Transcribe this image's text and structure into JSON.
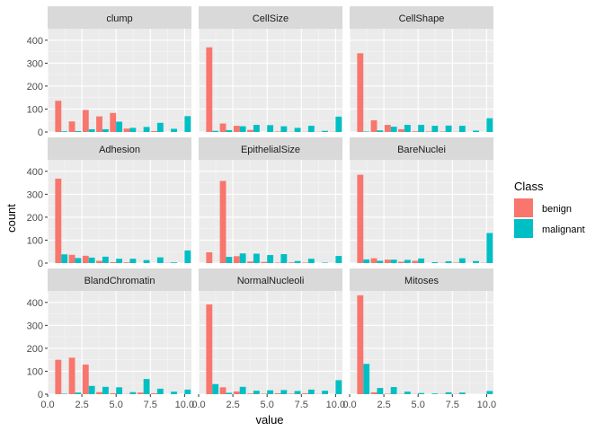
{
  "chart_data": {
    "type": "bar",
    "facet_layout": "3x3",
    "xlabel": "value",
    "ylabel": "count",
    "x_ticks": [
      0.0,
      2.5,
      5.0,
      7.5,
      10.0
    ],
    "x_tick_labels": [
      "0.0",
      "2.5",
      "5.0",
      "7.5",
      "10.0"
    ],
    "y_ticks": [
      0,
      100,
      200,
      300,
      400
    ],
    "ylim": [
      0,
      450
    ],
    "xlim": [
      0,
      10.5
    ],
    "x": [
      1,
      2,
      3,
      4,
      5,
      6,
      7,
      8,
      9,
      10
    ],
    "grid": true,
    "legend": {
      "title": "Class",
      "placement": "right",
      "entries": [
        {
          "name": "benign",
          "color": "#F8766D"
        },
        {
          "name": "malignant",
          "color": "#00BFC4"
        }
      ]
    },
    "panels": [
      {
        "title": "clump",
        "benign": [
          136,
          46,
          96,
          68,
          83,
          15,
          1,
          4,
          0,
          0
        ],
        "malignant": [
          3,
          4,
          12,
          12,
          45,
          18,
          22,
          40,
          14,
          69
        ]
      },
      {
        "title": "CellSize",
        "benign": [
          369,
          37,
          27,
          9,
          0,
          2,
          1,
          1,
          1,
          1
        ],
        "malignant": [
          5,
          8,
          25,
          31,
          30,
          25,
          18,
          27,
          5,
          67
        ]
      },
      {
        "title": "CellShape",
        "benign": [
          343,
          51,
          31,
          12,
          3,
          2,
          2,
          1,
          0,
          0
        ],
        "malignant": [
          2,
          7,
          23,
          31,
          31,
          27,
          28,
          27,
          6,
          60
        ]
      },
      {
        "title": "Adhesion",
        "benign": [
          368,
          36,
          32,
          10,
          4,
          3,
          0,
          0,
          1,
          0
        ],
        "malignant": [
          38,
          22,
          24,
          28,
          19,
          19,
          13,
          25,
          3,
          55
        ]
      },
      {
        "title": "EpithelialSize",
        "benign": [
          47,
          358,
          30,
          7,
          5,
          2,
          3,
          2,
          0,
          0
        ],
        "malignant": [
          0,
          27,
          42,
          41,
          35,
          39,
          9,
          19,
          2,
          31
        ]
      },
      {
        "title": "BareNuclei",
        "benign": [
          385,
          21,
          15,
          6,
          10,
          0,
          1,
          2,
          0,
          1
        ],
        "malignant": [
          16,
          10,
          15,
          14,
          20,
          4,
          8,
          21,
          9,
          131
        ]
      },
      {
        "title": "BlandChromatin",
        "benign": [
          150,
          159,
          129,
          9,
          4,
          1,
          7,
          4,
          0,
          0
        ],
        "malignant": [
          2,
          7,
          36,
          32,
          30,
          9,
          66,
          24,
          11,
          20
        ]
      },
      {
        "title": "NormalNucleoli",
        "benign": [
          391,
          30,
          12,
          3,
          2,
          4,
          2,
          4,
          1,
          0
        ],
        "malignant": [
          44,
          6,
          32,
          15,
          17,
          18,
          14,
          20,
          15,
          61
        ]
      },
      {
        "title": "Mitoses",
        "benign": [
          431,
          8,
          2,
          1,
          1,
          0,
          1,
          1,
          0,
          0
        ],
        "malignant": [
          132,
          27,
          31,
          11,
          5,
          3,
          8,
          7,
          0,
          14
        ]
      }
    ]
  }
}
